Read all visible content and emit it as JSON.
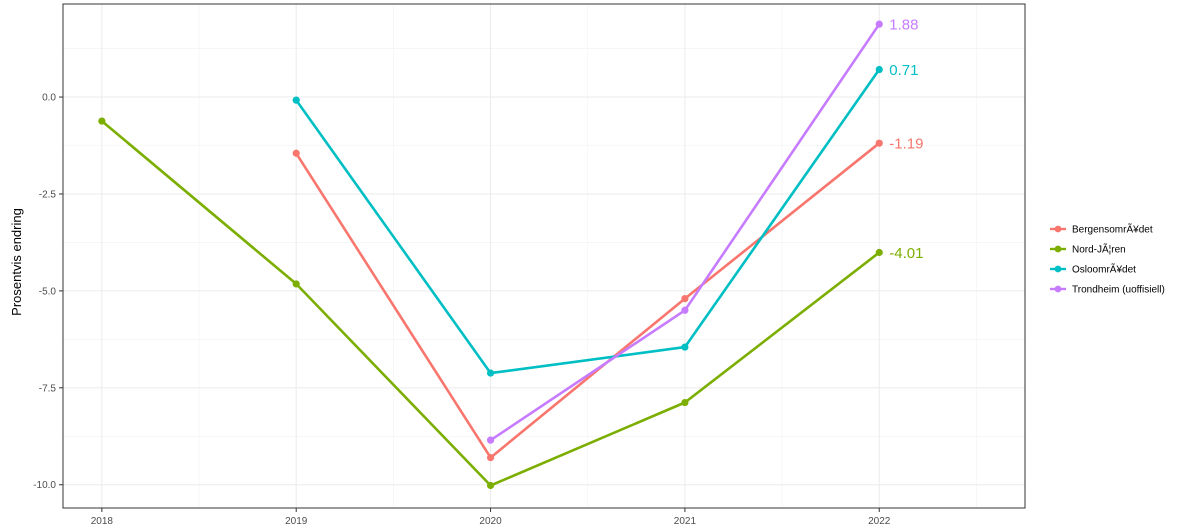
{
  "chart_data": {
    "type": "line",
    "title": "",
    "xlabel": "",
    "ylabel": "Prosentvis endring",
    "x": [
      2018,
      2019,
      2020,
      2021,
      2022
    ],
    "xlim": [
      2017.8,
      2022.75
    ],
    "ylim": [
      -10.6,
      2.4
    ],
    "yticks": [
      0.0,
      -2.5,
      -5.0,
      -7.5,
      -10.0
    ],
    "ytick_labels": [
      "0.0",
      "-2.5",
      "-5.0",
      "-7.5",
      "-10.0"
    ],
    "xtick_labels": [
      "2018",
      "2019",
      "2020",
      "2021",
      "2022"
    ],
    "grid": true,
    "legend_position": "right",
    "series": [
      {
        "name": "BergensomrÃ¥det",
        "color": "#f8766d",
        "values": [
          null,
          -1.45,
          -9.3,
          -5.2,
          -1.19
        ],
        "end_label": "-1.19"
      },
      {
        "name": "Nord-JÃ¦ren",
        "color": "#7cae00",
        "values": [
          -0.62,
          -4.82,
          -10.02,
          -7.88,
          -4.01
        ],
        "end_label": "-4.01"
      },
      {
        "name": "OsloomrÃ¥det",
        "color": "#00bfc4",
        "values": [
          null,
          -0.08,
          -7.12,
          -6.45,
          0.71
        ],
        "end_label": "0.71"
      },
      {
        "name": "Trondheim (uoffisiell)",
        "color": "#c77cff",
        "values": [
          null,
          null,
          -8.85,
          -5.5,
          1.88
        ],
        "end_label": "1.88"
      }
    ]
  }
}
